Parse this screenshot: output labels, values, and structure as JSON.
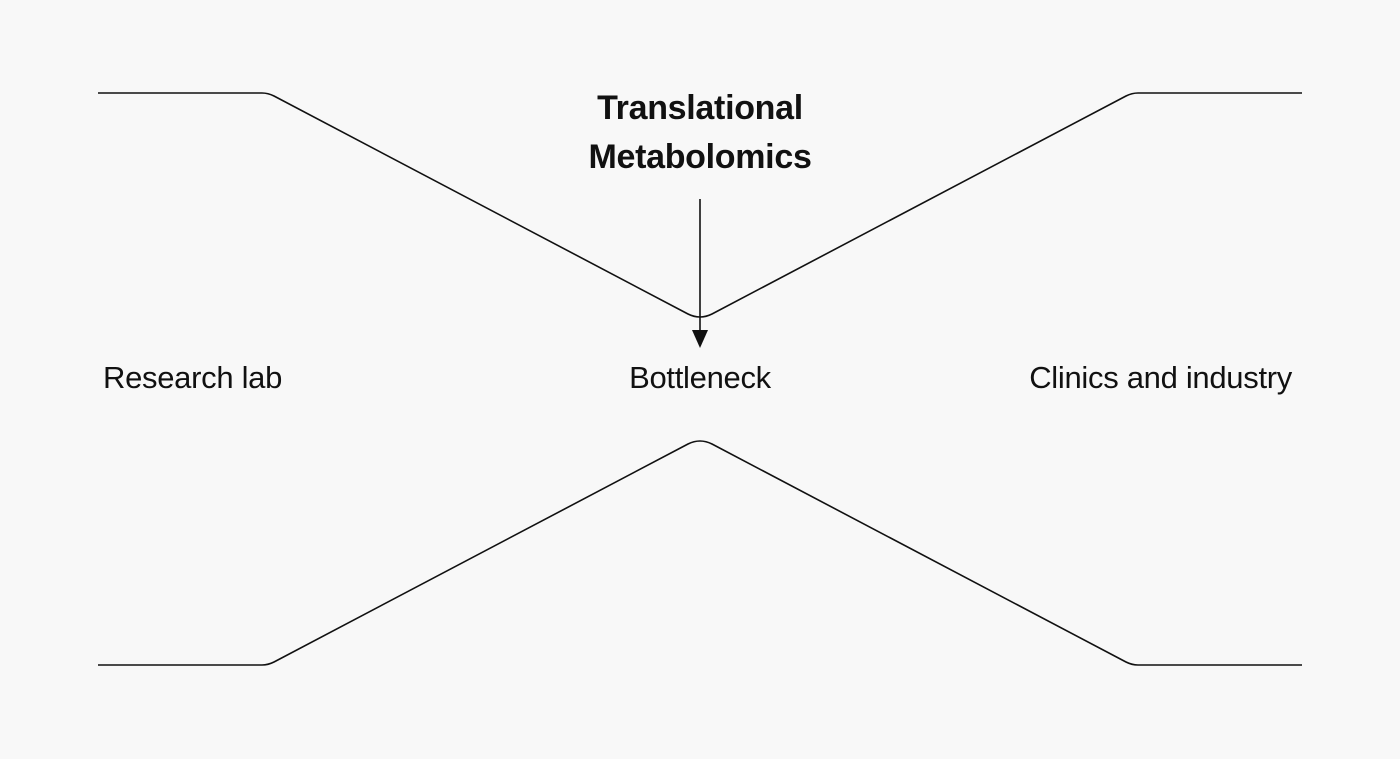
{
  "title": {
    "line1": "Translational",
    "line2": "Metabolomics"
  },
  "labels": {
    "left": "Research lab",
    "center": "Bottleneck",
    "right": "Clinics and industry"
  },
  "colors": {
    "background": "#f8f8f8",
    "ink": "#111111"
  }
}
